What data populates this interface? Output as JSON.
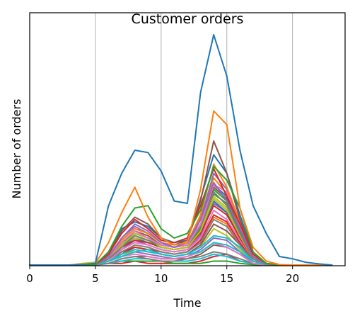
{
  "chart_data": {
    "type": "line",
    "title": "Customer orders",
    "xlabel": "Time",
    "ylabel": "Number of orders",
    "xlim": [
      0,
      24
    ],
    "ylim": [
      0,
      100
    ],
    "xticks": [
      0,
      5,
      10,
      15,
      20
    ],
    "y_tick_labels_shown": false,
    "grid": "x-only",
    "legend": "none",
    "x": [
      0,
      1,
      2,
      3,
      4,
      5,
      6,
      7,
      8,
      9,
      10,
      11,
      12,
      13,
      14,
      15,
      16,
      17,
      18,
      19,
      20,
      21,
      22,
      23
    ],
    "colors": [
      "#1f77b4",
      "#ff7f0e",
      "#2ca02c",
      "#d62728",
      "#9467bd",
      "#8c564b",
      "#e377c2",
      "#7f7f7f",
      "#bcbd22",
      "#17becf"
    ],
    "series": [
      {
        "values": [
          0.3,
          0.3,
          0.3,
          0.3,
          0.5,
          1,
          26,
          40,
          50,
          49,
          41,
          28,
          27,
          75,
          100,
          82,
          50,
          26,
          14,
          4,
          3,
          1.5,
          0.8,
          0.3
        ]
      },
      {
        "values": [
          0.3,
          0.3,
          0.3,
          0.3,
          0.5,
          1,
          10,
          23,
          34,
          21,
          12,
          9,
          10,
          33,
          67,
          61,
          25,
          8,
          2,
          0.5,
          0.3,
          0.3,
          0.3,
          0.3
        ]
      },
      {
        "values": [
          0.2,
          0.2,
          0.2,
          0.2,
          0.3,
          0.5,
          6,
          17,
          25,
          26,
          16,
          12,
          14,
          24,
          43,
          37,
          25,
          6,
          1,
          0.3,
          0.2,
          0.2,
          0.2,
          0.2
        ]
      },
      {
        "values": [
          0.2,
          0.2,
          0.2,
          0.2,
          0.3,
          0.5,
          5,
          14,
          20,
          16,
          11,
          10,
          12,
          26,
          42,
          30,
          18,
          5,
          1,
          0.3,
          0.2,
          0.2,
          0.2,
          0.2
        ]
      },
      {
        "values": [
          0.2,
          0.2,
          0.2,
          0.2,
          0.3,
          0.4,
          4,
          12,
          18,
          15,
          10,
          8,
          10,
          20,
          36,
          28,
          16,
          4,
          0.8,
          0.2,
          0.2,
          0.2,
          0.2,
          0.2
        ]
      },
      {
        "values": [
          0.2,
          0.2,
          0.2,
          0.2,
          0.3,
          0.4,
          5,
          15,
          21,
          18,
          12,
          9,
          11,
          28,
          54,
          40,
          20,
          5,
          1,
          0.2,
          0.2,
          0.2,
          0.2,
          0.2
        ]
      },
      {
        "values": [
          0.2,
          0.2,
          0.2,
          0.2,
          0.3,
          0.4,
          4,
          10,
          15,
          12,
          9,
          8,
          9,
          18,
          35,
          32,
          17,
          4,
          0.8,
          0.2,
          0.2,
          0.2,
          0.2,
          0.2
        ]
      },
      {
        "values": [
          0.2,
          0.2,
          0.2,
          0.2,
          0.3,
          0.4,
          3,
          8,
          13,
          11,
          9,
          8,
          9,
          17,
          32,
          26,
          14,
          3,
          0.6,
          0.2,
          0.2,
          0.2,
          0.2,
          0.2
        ]
      },
      {
        "values": [
          0.2,
          0.2,
          0.2,
          0.2,
          1,
          1.5,
          3,
          9,
          14,
          12,
          8,
          7,
          8,
          15,
          30,
          25,
          13,
          3,
          0.6,
          0.2,
          0.2,
          0.2,
          0.2,
          0.2
        ]
      },
      {
        "values": [
          0.2,
          0.2,
          0.2,
          0.2,
          0.3,
          0.4,
          2,
          5,
          7,
          6,
          5,
          4,
          5,
          8,
          13,
          12,
          8,
          2,
          0.4,
          0.2,
          0.2,
          0.2,
          0.2,
          0.2
        ]
      },
      {
        "values": [
          0.2,
          0.2,
          0.2,
          0.2,
          0.3,
          0.4,
          5,
          16,
          19,
          17,
          12,
          10,
          11,
          29,
          48,
          40,
          22,
          5,
          1,
          0.2,
          0.2,
          0.2,
          0.2,
          0.2
        ]
      },
      {
        "values": [
          0.2,
          0.2,
          0.2,
          0.2,
          0.3,
          0.4,
          4,
          11,
          16,
          14,
          10,
          9,
          10,
          22,
          44,
          34,
          19,
          4,
          0.8,
          0.2,
          0.2,
          0.2,
          0.2,
          0.2
        ]
      },
      {
        "values": [
          0.2,
          0.2,
          0.2,
          0.2,
          0.3,
          0.4,
          3,
          9,
          13,
          11,
          8,
          7,
          8,
          16,
          31,
          27,
          15,
          3,
          0.6,
          0.2,
          0.2,
          0.2,
          0.2,
          0.2
        ]
      },
      {
        "values": [
          0.2,
          0.2,
          0.2,
          0.2,
          0.3,
          0.4,
          3,
          8,
          11,
          10,
          8,
          7,
          8,
          14,
          26,
          22,
          12,
          3,
          0.5,
          0.2,
          0.2,
          0.2,
          0.2,
          0.2
        ]
      },
      {
        "values": [
          0.2,
          0.2,
          0.2,
          0.2,
          0.3,
          0.4,
          4,
          12,
          17,
          14,
          10,
          8,
          9,
          20,
          40,
          33,
          18,
          4,
          0.8,
          0.2,
          0.2,
          0.2,
          0.2,
          0.2
        ]
      },
      {
        "values": [
          0.2,
          0.2,
          0.2,
          0.2,
          0.3,
          0.4,
          3,
          10,
          15,
          13,
          9,
          8,
          9,
          18,
          34,
          29,
          16,
          4,
          0.7,
          0.2,
          0.2,
          0.2,
          0.2,
          0.2
        ]
      },
      {
        "values": [
          0.2,
          0.2,
          0.2,
          0.2,
          0.3,
          0.4,
          2,
          7,
          10,
          9,
          7,
          6,
          7,
          12,
          24,
          20,
          11,
          3,
          0.5,
          0.2,
          0.2,
          0.2,
          0.2,
          0.2
        ]
      },
      {
        "values": [
          0.2,
          0.2,
          0.2,
          0.2,
          0.3,
          0.4,
          2,
          6,
          9,
          8,
          6,
          5,
          6,
          10,
          20,
          17,
          9,
          2,
          0.4,
          0.2,
          0.2,
          0.2,
          0.2,
          0.2
        ]
      },
      {
        "values": [
          0.2,
          0.2,
          0.2,
          0.2,
          0.3,
          0.4,
          3,
          9,
          12,
          11,
          8,
          7,
          8,
          15,
          29,
          24,
          13,
          3,
          0.6,
          0.2,
          0.2,
          0.2,
          0.2,
          0.2
        ]
      },
      {
        "values": [
          0.2,
          0.2,
          0.2,
          0.2,
          0.3,
          0.4,
          2,
          4,
          6,
          7,
          5,
          4,
          5,
          6,
          10,
          9,
          6,
          2,
          0.4,
          0.2,
          0.2,
          0.2,
          0.2,
          0.2
        ]
      },
      {
        "values": [
          0.2,
          0.2,
          0.2,
          0.2,
          0.3,
          0.4,
          3,
          8,
          12,
          10,
          8,
          7,
          8,
          15,
          28,
          23,
          12,
          3,
          0.6,
          0.2,
          0.2,
          0.2,
          0.2,
          0.2
        ]
      },
      {
        "values": [
          0.2,
          0.2,
          0.2,
          0.2,
          0.3,
          0.4,
          4,
          11,
          16,
          14,
          10,
          8,
          10,
          21,
          38,
          31,
          17,
          4,
          0.8,
          0.2,
          0.2,
          0.2,
          0.2,
          0.2
        ]
      },
      {
        "values": [
          0.2,
          0.2,
          0.2,
          0.2,
          0.3,
          0.4,
          3,
          9,
          14,
          12,
          9,
          8,
          9,
          17,
          33,
          28,
          15,
          3,
          0.7,
          0.2,
          0.2,
          0.2,
          0.2,
          0.2
        ]
      },
      {
        "values": [
          0.2,
          0.2,
          0.2,
          0.2,
          0.3,
          0.4,
          2,
          6,
          8,
          7,
          6,
          5,
          6,
          11,
          22,
          19,
          10,
          2,
          0.5,
          0.2,
          0.2,
          0.2,
          0.2,
          0.2
        ]
      },
      {
        "values": [
          0.2,
          0.2,
          0.2,
          0.2,
          0.3,
          0.4,
          3,
          7,
          11,
          9,
          7,
          6,
          7,
          13,
          27,
          23,
          12,
          3,
          0.5,
          0.2,
          0.2,
          0.2,
          0.2,
          0.2
        ]
      },
      {
        "values": [
          0.2,
          0.2,
          0.2,
          0.2,
          0.3,
          0.4,
          2,
          5,
          8,
          7,
          5,
          4,
          5,
          9,
          18,
          15,
          9,
          2,
          0.4,
          0.2,
          0.2,
          0.2,
          0.2,
          0.2
        ]
      },
      {
        "values": [
          0.2,
          0.2,
          0.2,
          0.2,
          0.3,
          0.4,
          2,
          4,
          5,
          4,
          3,
          3,
          4,
          6,
          10,
          8,
          5,
          1,
          0.3,
          0.2,
          0.2,
          0.2,
          0.2,
          0.2
        ]
      },
      {
        "values": [
          0.2,
          0.2,
          0.2,
          0.2,
          0.3,
          0.4,
          1,
          3,
          4,
          3,
          2,
          2,
          3,
          4,
          6,
          5,
          3,
          1,
          0.2,
          0.2,
          0.2,
          0.2,
          0.2,
          0.2
        ]
      },
      {
        "values": [
          0.2,
          0.2,
          0.2,
          0.2,
          0.3,
          0.4,
          2,
          4,
          7,
          6,
          5,
          4,
          5,
          8,
          16,
          13,
          7,
          2,
          0.4,
          0.2,
          0.2,
          0.2,
          0.2,
          0.2
        ]
      },
      {
        "values": [
          0.2,
          0.2,
          0.2,
          0.2,
          0.3,
          0.4,
          1,
          2,
          3,
          3,
          2,
          2,
          2,
          3,
          5,
          4,
          2,
          1,
          0.2,
          0.2,
          0.2,
          0.2,
          0.2,
          0.2
        ]
      },
      {
        "values": [
          0.2,
          0.2,
          0.2,
          0.2,
          0.3,
          0.4,
          3,
          10,
          14,
          12,
          9,
          8,
          9,
          18,
          35,
          30,
          16,
          4,
          0.7,
          0.2,
          0.2,
          0.2,
          0.2,
          0.2
        ]
      },
      {
        "values": [
          0.2,
          0.2,
          0.2,
          0.2,
          0.3,
          0.4,
          2,
          5,
          9,
          8,
          6,
          5,
          6,
          11,
          21,
          18,
          10,
          2,
          0.5,
          0.2,
          0.2,
          0.2,
          0.2,
          0.2
        ]
      },
      {
        "values": [
          0.2,
          0.2,
          0.2,
          0.2,
          0.3,
          0.4,
          1,
          2,
          2,
          2,
          2,
          1,
          1,
          1,
          2,
          2,
          1,
          0.5,
          0.2,
          0.2,
          0.2,
          0.2,
          0.2,
          0.2
        ]
      },
      {
        "values": [
          0.2,
          0.2,
          0.2,
          0.2,
          0.3,
          0.4,
          1,
          1,
          2,
          1,
          1,
          1,
          1,
          2,
          4,
          5,
          2,
          1,
          0.2,
          0.2,
          0.2,
          0.2,
          0.2,
          0.2
        ]
      },
      {
        "values": [
          0.2,
          0.2,
          0.2,
          0.2,
          0.3,
          0.4,
          2,
          4,
          6,
          5,
          4,
          3,
          4,
          7,
          12,
          11,
          6,
          1,
          0.3,
          0.2,
          0.2,
          0.2,
          0.2,
          0.2
        ]
      },
      {
        "values": [
          0.2,
          0.2,
          0.2,
          0.2,
          0.3,
          0.4,
          1,
          3,
          4,
          4,
          3,
          3,
          3,
          5,
          9,
          8,
          5,
          1,
          0.3,
          0.2,
          0.2,
          0.2,
          0.2,
          0.2
        ]
      }
    ]
  }
}
